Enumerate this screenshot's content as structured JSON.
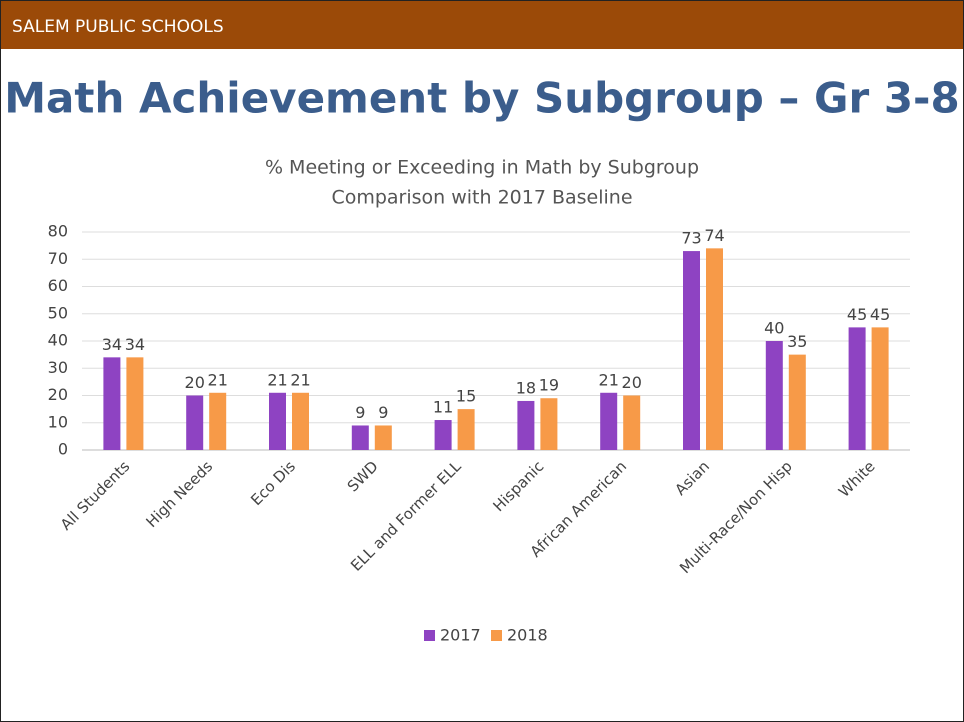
{
  "header": {
    "org": "SALEM PUBLIC SCHOOLS",
    "title": "Math Achievement by Subgroup – Gr 3-8"
  },
  "chart_data": {
    "type": "bar",
    "title": "% Meeting or Exceeding in Math by Subgroup",
    "subtitle": "Comparison with 2017 Baseline",
    "categories": [
      "All Students",
      "High Needs",
      "Eco Dis",
      "SWD",
      "ELL and Former ELL",
      "Hispanic",
      "African American",
      "Asian",
      "Multi-Race/Non Hisp",
      "White"
    ],
    "series": [
      {
        "name": "2017",
        "color": "#8e43c2",
        "values": [
          34,
          20,
          21,
          9,
          11,
          18,
          21,
          73,
          40,
          45
        ]
      },
      {
        "name": "2018",
        "color": "#f79a48",
        "values": [
          34,
          21,
          21,
          9,
          15,
          19,
          20,
          74,
          35,
          45
        ]
      }
    ],
    "ylim": [
      0,
      80
    ],
    "yticks": [
      0,
      10,
      20,
      30,
      40,
      50,
      60,
      70,
      80
    ],
    "grid": true,
    "legend": "bottom"
  }
}
